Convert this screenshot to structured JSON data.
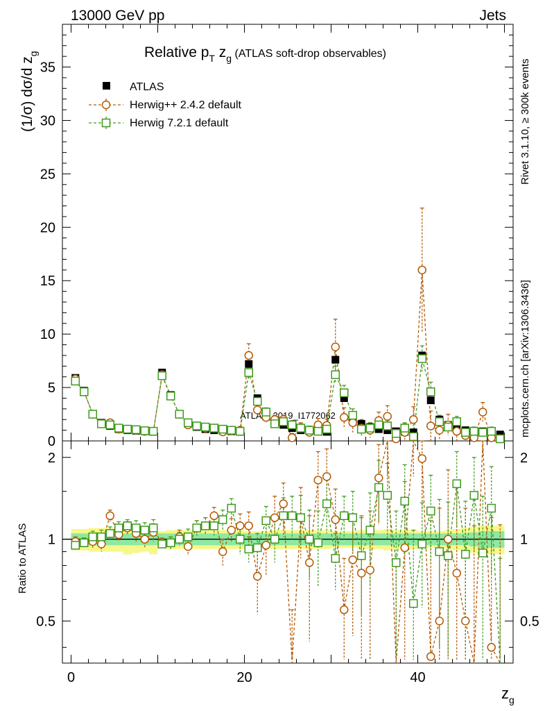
{
  "header": {
    "left": "13000 GeV pp",
    "right": "Jets"
  },
  "side": {
    "rivet": "Rivet 3.1.10, ≥ 300k events",
    "mcplots": "mcplots.cern.ch [arXiv:1306.3436]"
  },
  "watermark": "ATLAS_2019_I1772062",
  "chart_data": {
    "type": "scatter",
    "title_parts": {
      "main": "Relative p",
      "sub1": "T",
      "mid": " z",
      "sub2": "g",
      "tail": " (ATLAS soft-drop observables)"
    },
    "xlabel_parts": {
      "main": "z",
      "sub": "g"
    },
    "ylabel_parts": {
      "main": "(1/σ) dσ/d z",
      "sub": "g"
    },
    "ratio_ylabel": "Ratio to ATLAS",
    "xlim": [
      -1,
      51
    ],
    "ylim": [
      0,
      39
    ],
    "ratio_ylim": [
      0.35,
      2.3
    ],
    "x_ticks": [
      0,
      20,
      40
    ],
    "y_ticks": [
      0,
      5,
      10,
      15,
      20,
      25,
      30,
      35
    ],
    "ratio_ticks": [
      0.5,
      1,
      2
    ],
    "ratio_tick_labels": [
      "0.5",
      "1",
      "2"
    ],
    "x": [
      0.5,
      1.5,
      2.5,
      3.5,
      4.5,
      5.5,
      6.5,
      7.5,
      8.5,
      9.5,
      10.5,
      11.5,
      12.5,
      13.5,
      14.5,
      15.5,
      16.5,
      17.5,
      18.5,
      19.5,
      20.5,
      21.5,
      22.5,
      23.5,
      24.5,
      25.5,
      26.5,
      27.5,
      28.5,
      29.5,
      30.5,
      31.5,
      32.5,
      33.5,
      34.5,
      35.5,
      36.5,
      37.5,
      38.5,
      39.5,
      40.5,
      41.5,
      42.5,
      43.5,
      44.5,
      45.5,
      46.5,
      47.5,
      48.5,
      49.5
    ],
    "series": [
      {
        "name": "ATLAS",
        "color": "#000000",
        "marker": "filled-square",
        "values": [
          5.9,
          4.7,
          2.5,
          1.7,
          1.4,
          1.1,
          1.0,
          0.95,
          0.9,
          0.85,
          6.4,
          4.3,
          2.5,
          1.6,
          1.3,
          1.1,
          1.0,
          0.95,
          0.9,
          0.85,
          7.2,
          4.0,
          2.3,
          1.7,
          1.5,
          1.2,
          1.0,
          0.95,
          0.9,
          0.85,
          7.6,
          4.0,
          2.0,
          1.6,
          1.3,
          1.1,
          1.0,
          0.9,
          0.85,
          0.8,
          8.0,
          3.8,
          2.0,
          1.5,
          1.2,
          1.0,
          0.95,
          0.9,
          0.75,
          0.6
        ]
      },
      {
        "name": "Herwig++ 2.4.2 default",
        "color": "#b35900",
        "marker": "open-circle",
        "values": [
          5.8,
          4.6,
          2.5,
          1.6,
          1.7,
          1.1,
          1.1,
          1.0,
          0.9,
          0.9,
          6.2,
          4.2,
          2.5,
          1.5,
          1.4,
          1.2,
          1.2,
          0.85,
          0.95,
          1.0,
          8.0,
          2.9,
          2.2,
          2.0,
          2.0,
          0.3,
          1.2,
          0.8,
          1.5,
          1.45,
          8.8,
          2.2,
          1.7,
          1.2,
          1.0,
          1.9,
          2.3,
          0.2,
          0.8,
          2.0,
          16.0,
          1.4,
          1.0,
          1.5,
          0.9,
          0.5,
          0.3,
          2.7,
          0.3,
          0.2
        ],
        "errors": [
          0.2,
          0.2,
          0.2,
          0.2,
          0.2,
          0.15,
          0.15,
          0.15,
          0.1,
          0.1,
          0.3,
          0.3,
          0.2,
          0.2,
          0.2,
          0.2,
          0.2,
          0.2,
          0.2,
          0.2,
          1.1,
          0.6,
          0.5,
          0.4,
          0.4,
          0.4,
          0.5,
          0.5,
          0.6,
          0.6,
          2.6,
          0.9,
          0.9,
          0.8,
          0.7,
          0.8,
          1.0,
          0.6,
          0.8,
          1.2,
          5.8,
          1.4,
          1.0,
          1.0,
          0.9,
          0.8,
          0.7,
          0.9,
          0.6,
          0.5
        ],
        "ratio": [
          0.98,
          0.97,
          0.98,
          0.96,
          1.22,
          1.04,
          1.1,
          1.05,
          1.0,
          1.06,
          0.97,
          0.97,
          1.02,
          0.94,
          1.1,
          1.12,
          1.22,
          0.9,
          1.08,
          1.12,
          1.12,
          0.73,
          0.95,
          1.2,
          1.35,
          0.25,
          1.2,
          0.82,
          1.65,
          1.7,
          1.18,
          0.55,
          0.84,
          0.75,
          0.77,
          1.68,
          2.3,
          0.22,
          0.93,
          2.5,
          1.98,
          0.37,
          0.5,
          1.0,
          0.75,
          0.5,
          0.32,
          2.9,
          0.4,
          0.33
        ],
        "ratio_errors": [
          0.04,
          0.04,
          0.05,
          0.06,
          0.06,
          0.06,
          0.06,
          0.07,
          0.07,
          0.08,
          0.04,
          0.05,
          0.06,
          0.07,
          0.07,
          0.08,
          0.09,
          0.1,
          0.11,
          0.12,
          0.14,
          0.2,
          0.22,
          0.24,
          0.26,
          0.3,
          0.35,
          0.4,
          0.45,
          0.45,
          0.35,
          0.3,
          0.4,
          0.45,
          0.5,
          0.55,
          0.6,
          0.6,
          0.7,
          0.8,
          0.7,
          0.8,
          0.8,
          0.8,
          0.8,
          0.8,
          0.8,
          0.9,
          0.8,
          0.8
        ]
      },
      {
        "name": "Herwig 7.2.1 default",
        "color": "#3c9a1c",
        "marker": "open-square",
        "values": [
          5.6,
          4.6,
          2.5,
          1.6,
          1.5,
          1.2,
          1.1,
          1.05,
          0.95,
          0.9,
          6.1,
          4.2,
          2.5,
          1.7,
          1.4,
          1.3,
          1.2,
          1.1,
          1.0,
          0.9,
          6.4,
          3.7,
          2.7,
          1.6,
          1.8,
          1.5,
          1.2,
          1.0,
          0.9,
          1.1,
          6.2,
          4.5,
          2.4,
          1.1,
          1.2,
          1.5,
          1.4,
          0.7,
          1.2,
          0.4,
          7.7,
          4.6,
          1.8,
          1.3,
          1.8,
          0.8,
          0.9,
          0.8,
          0.9,
          0.2
        ],
        "errors": [
          0.2,
          0.2,
          0.2,
          0.2,
          0.2,
          0.15,
          0.15,
          0.15,
          0.1,
          0.1,
          0.3,
          0.3,
          0.2,
          0.2,
          0.2,
          0.2,
          0.2,
          0.2,
          0.2,
          0.2,
          0.6,
          0.5,
          0.4,
          0.4,
          0.4,
          0.4,
          0.4,
          0.4,
          0.4,
          0.4,
          0.8,
          0.7,
          0.6,
          0.5,
          0.5,
          0.5,
          0.5,
          0.4,
          0.5,
          0.4,
          1.2,
          0.9,
          0.6,
          0.5,
          0.5,
          0.4,
          0.4,
          0.4,
          0.4,
          0.3
        ],
        "ratio": [
          0.95,
          0.97,
          1.02,
          1.02,
          1.05,
          1.1,
          1.12,
          1.1,
          1.08,
          1.1,
          0.96,
          0.97,
          1.0,
          1.02,
          1.1,
          1.12,
          1.12,
          1.18,
          1.3,
          1.0,
          0.92,
          0.93,
          1.17,
          1.0,
          1.22,
          1.22,
          1.2,
          1.0,
          0.97,
          1.35,
          0.85,
          1.22,
          1.2,
          0.87,
          1.08,
          1.55,
          1.45,
          0.82,
          1.38,
          0.58,
          0.96,
          1.27,
          0.9,
          0.87,
          1.6,
          0.88,
          1.45,
          0.89,
          1.3,
          0.3
        ],
        "ratio_errors": [
          0.04,
          0.04,
          0.05,
          0.06,
          0.06,
          0.06,
          0.06,
          0.07,
          0.07,
          0.08,
          0.04,
          0.05,
          0.06,
          0.07,
          0.07,
          0.08,
          0.09,
          0.1,
          0.11,
          0.12,
          0.1,
          0.12,
          0.15,
          0.18,
          0.2,
          0.22,
          0.25,
          0.28,
          0.3,
          0.3,
          0.2,
          0.22,
          0.3,
          0.35,
          0.4,
          0.4,
          0.45,
          0.45,
          0.5,
          0.5,
          0.4,
          0.45,
          0.5,
          0.5,
          0.5,
          0.5,
          0.55,
          0.55,
          0.55,
          0.55
        ]
      }
    ],
    "band_inner": [
      0.05,
      0.05,
      0.05,
      0.05,
      0.05,
      0.05,
      0.05,
      0.05,
      0.05,
      0.05,
      0.05,
      0.05,
      0.05,
      0.05,
      0.05,
      0.05,
      0.05,
      0.05,
      0.05,
      0.05,
      0.05,
      0.05,
      0.05,
      0.05,
      0.05,
      0.05,
      0.05,
      0.05,
      0.05,
      0.05,
      0.05,
      0.05,
      0.05,
      0.05,
      0.05,
      0.05,
      0.05,
      0.05,
      0.05,
      0.05,
      0.05,
      0.05,
      0.05,
      0.05,
      0.05,
      0.05,
      0.06,
      0.07,
      0.07,
      0.07
    ],
    "band_outer": [
      0.09,
      0.09,
      0.1,
      0.1,
      0.1,
      0.1,
      0.12,
      0.11,
      0.1,
      0.12,
      0.07,
      0.08,
      0.08,
      0.08,
      0.08,
      0.08,
      0.08,
      0.08,
      0.08,
      0.08,
      0.07,
      0.07,
      0.07,
      0.08,
      0.08,
      0.08,
      0.08,
      0.08,
      0.08,
      0.08,
      0.07,
      0.07,
      0.07,
      0.08,
      0.08,
      0.08,
      0.09,
      0.08,
      0.08,
      0.08,
      0.07,
      0.07,
      0.07,
      0.08,
      0.09,
      0.1,
      0.11,
      0.12,
      0.12,
      0.12
    ]
  }
}
